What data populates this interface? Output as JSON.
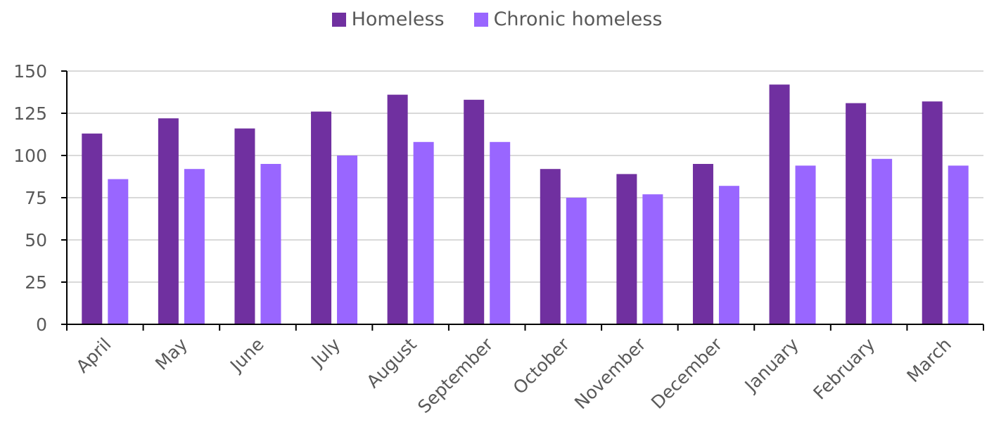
{
  "chart_data": {
    "type": "bar",
    "title": "",
    "xlabel": "",
    "ylabel": "",
    "categories": [
      "April",
      "May",
      "June",
      "July",
      "August",
      "September",
      "October",
      "November",
      "December",
      "January",
      "February",
      "March"
    ],
    "series": [
      {
        "name": "Homeless",
        "color": "#7030a0",
        "values": [
          113,
          122,
          116,
          126,
          136,
          133,
          92,
          89,
          95,
          142,
          131,
          132
        ]
      },
      {
        "name": "Chronic homeless",
        "color": "#9966ff",
        "values": [
          86,
          92,
          95,
          100,
          108,
          108,
          75,
          77,
          82,
          94,
          98,
          94
        ]
      }
    ],
    "ylim": [
      0,
      150
    ],
    "yticks": [
      "0",
      "25",
      "50",
      "75",
      "100",
      "125",
      "150"
    ],
    "grid": true,
    "legend_position": "top-center"
  }
}
